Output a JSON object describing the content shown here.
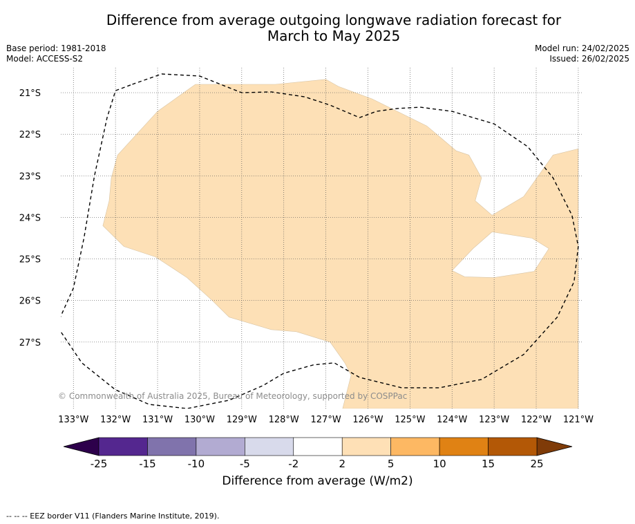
{
  "title_line1": "Difference from average outgoing longwave radiation forecast for",
  "title_line2": "March to May 2025",
  "meta": {
    "base_period": "Base period: 1981-2018",
    "model": "Model: ACCESS-S2",
    "model_run": "Model run: 24/02/2025",
    "issued": "Issued: 26/02/2025"
  },
  "copyright": "© Commonwealth of Australia 2025, Bureau of Meteorology, supported by COSPPac",
  "footnote": "-- -- -- EEZ border V11 (Flanders Marine Institute, 2019).",
  "colors": {
    "fill_2_5": "#fde0b6",
    "grid": "#555555",
    "eez_line": "#000000"
  },
  "chart_data": {
    "type": "heatmap",
    "map": {
      "lon_range": [
        -133.3,
        -120.9
      ],
      "lat_range": [
        -28.6,
        -20.4
      ],
      "lon_ticks": [
        -133,
        -132,
        -131,
        -130,
        -129,
        -128,
        -127,
        -126,
        -125,
        -124,
        -123,
        -122,
        -121
      ],
      "lon_tick_labels": [
        "133°W",
        "132°W",
        "131°W",
        "130°W",
        "129°W",
        "128°W",
        "127°W",
        "126°W",
        "125°W",
        "124°W",
        "123°W",
        "122°W",
        "121°W"
      ],
      "lat_ticks": [
        -21,
        -22,
        -23,
        -24,
        -25,
        -26,
        -27
      ],
      "lat_tick_labels": [
        "21°S",
        "22°S",
        "23°S",
        "24°S",
        "25°S",
        "26°S",
        "27°S"
      ],
      "grid": true
    },
    "anomaly_region_2_to_5": {
      "fill_color": "#fde0b6",
      "outer_boundary_lonlat": [
        [
          -129.6,
          -20.8
        ],
        [
          -128.2,
          -20.8
        ],
        [
          -127.0,
          -20.68
        ],
        [
          -126.7,
          -20.85
        ],
        [
          -125.9,
          -21.15
        ],
        [
          -124.6,
          -21.8
        ],
        [
          -123.9,
          -22.4
        ],
        [
          -123.6,
          -22.5
        ],
        [
          -123.3,
          -23.05
        ],
        [
          -123.45,
          -23.6
        ],
        [
          -123.05,
          -23.95
        ],
        [
          -122.3,
          -23.5
        ],
        [
          -121.6,
          -22.5
        ],
        [
          -121.0,
          -22.35
        ],
        [
          -121.0,
          -28.6
        ],
        [
          -126.6,
          -28.6
        ],
        [
          -126.4,
          -27.8
        ],
        [
          -126.55,
          -27.5
        ],
        [
          -126.9,
          -27.0
        ],
        [
          -127.7,
          -26.75
        ],
        [
          -128.3,
          -26.7
        ],
        [
          -129.3,
          -26.4
        ],
        [
          -129.7,
          -26.0
        ],
        [
          -130.3,
          -25.45
        ],
        [
          -131.05,
          -24.95
        ],
        [
          -131.8,
          -24.7
        ],
        [
          -132.3,
          -24.2
        ],
        [
          -132.15,
          -23.6
        ],
        [
          -132.1,
          -23.05
        ],
        [
          -131.95,
          -22.5
        ],
        [
          -131.0,
          -21.45
        ],
        [
          -130.1,
          -20.8
        ]
      ],
      "hole_lonlat": [
        [
          -123.05,
          -24.35
        ],
        [
          -122.1,
          -24.5
        ],
        [
          -121.7,
          -24.75
        ],
        [
          -122.05,
          -25.3
        ],
        [
          -123.0,
          -25.45
        ],
        [
          -123.7,
          -25.43
        ],
        [
          -124.0,
          -25.28
        ],
        [
          -123.5,
          -24.75
        ]
      ]
    },
    "eez_border_lonlat": [
      [
        -131.6,
        -20.8
      ],
      [
        -130.9,
        -20.55
      ],
      [
        -130.0,
        -20.6
      ],
      [
        -129.0,
        -21.0
      ],
      [
        -128.3,
        -20.98
      ],
      [
        -127.5,
        -21.1
      ],
      [
        -126.9,
        -21.3
      ],
      [
        -126.2,
        -21.6
      ],
      [
        -125.8,
        -21.45
      ],
      [
        -125.3,
        -21.38
      ],
      [
        -124.75,
        -21.35
      ],
      [
        -124.0,
        -21.45
      ],
      [
        -123.0,
        -21.75
      ],
      [
        -122.2,
        -22.3
      ],
      [
        -121.6,
        -23.05
      ],
      [
        -121.15,
        -23.95
      ],
      [
        -121.0,
        -24.7
      ],
      [
        -121.1,
        -25.55
      ],
      [
        -121.5,
        -26.4
      ],
      [
        -122.3,
        -27.3
      ],
      [
        -123.3,
        -27.9
      ],
      [
        -124.3,
        -28.1
      ],
      [
        -125.2,
        -28.1
      ],
      [
        -126.2,
        -27.85
      ],
      [
        -126.8,
        -27.5
      ],
      [
        -127.3,
        -27.55
      ],
      [
        -128.0,
        -27.75
      ],
      [
        -128.5,
        -28.05
      ],
      [
        -129.3,
        -28.4
      ],
      [
        -130.3,
        -28.6
      ],
      [
        -131.2,
        -28.5
      ],
      [
        -132.0,
        -28.15
      ],
      [
        -132.8,
        -27.5
      ],
      [
        -133.4,
        -26.6
      ],
      [
        -133.0,
        -25.7
      ],
      [
        -132.75,
        -24.5
      ],
      [
        -132.5,
        -23.0
      ],
      [
        -132.2,
        -21.6
      ],
      [
        -132.0,
        -20.95
      ],
      [
        -131.6,
        -20.8
      ]
    ],
    "colorbar": {
      "label": "Difference from average (W/m2)",
      "tick_labels": [
        "-25",
        "-15",
        "-10",
        "-5",
        "-2",
        "2",
        "5",
        "10",
        "15",
        "25"
      ],
      "bins": [
        {
          "from": -25,
          "to": -15,
          "color": "#54278f"
        },
        {
          "from": -15,
          "to": -10,
          "color": "#8073ac"
        },
        {
          "from": -10,
          "to": -5,
          "color": "#b2abd2"
        },
        {
          "from": -5,
          "to": -2,
          "color": "#d8daeb"
        },
        {
          "from": -2,
          "to": 2,
          "color": "#ffffff"
        },
        {
          "from": 2,
          "to": 5,
          "color": "#fee0b6"
        },
        {
          "from": 5,
          "to": 10,
          "color": "#fdb863"
        },
        {
          "from": 10,
          "to": 15,
          "color": "#e08214"
        },
        {
          "from": 15,
          "to": 25,
          "color": "#b35806"
        }
      ],
      "extend_low_color": "#2d004b",
      "extend_high_color": "#7f3b08"
    }
  }
}
